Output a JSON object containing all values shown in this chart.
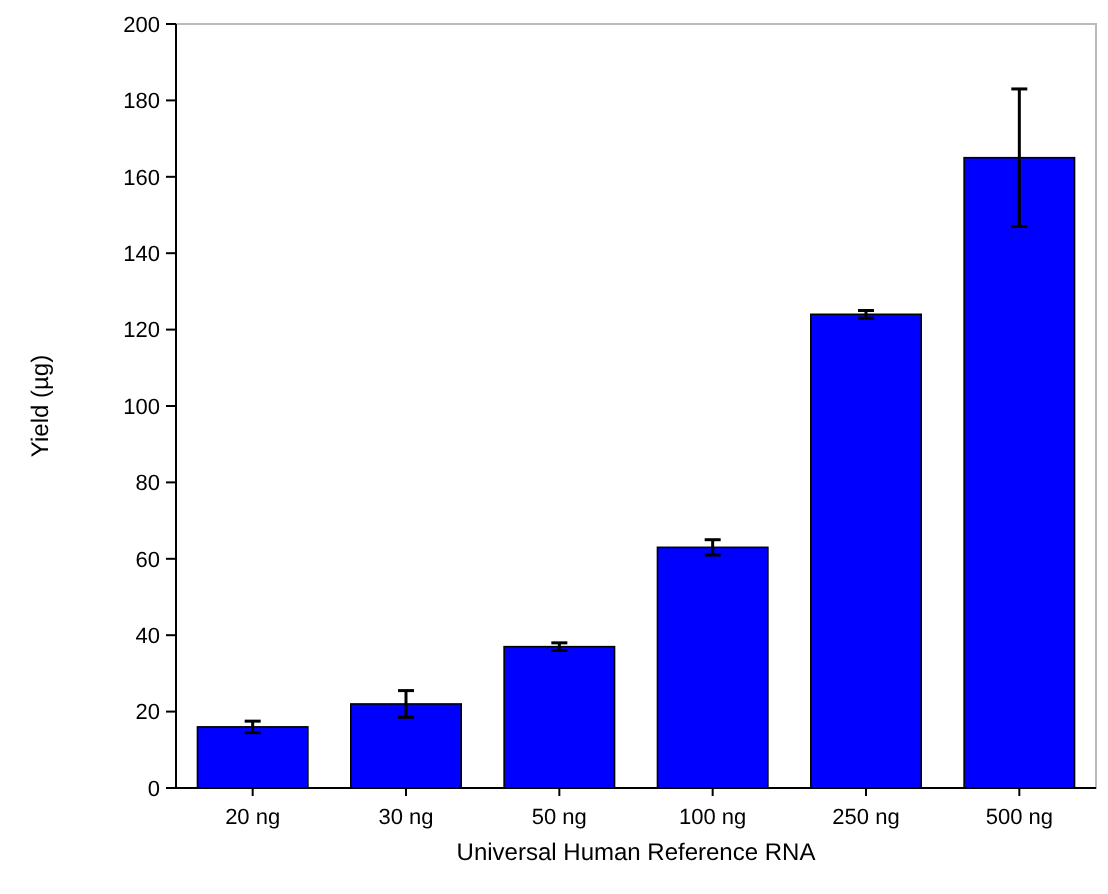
{
  "chart_data": {
    "type": "bar",
    "xlabel": "Universal Human Reference RNA",
    "ylabel": "Yield (µg)",
    "categories": [
      "20 ng",
      "30 ng",
      "50 ng",
      "100 ng",
      "250 ng",
      "500 ng"
    ],
    "values": [
      16,
      22,
      37,
      63,
      124,
      165
    ],
    "errors": [
      1.5,
      3.5,
      1,
      2,
      1,
      18
    ],
    "color": "#0000ff",
    "ylim": [
      0,
      200
    ],
    "yticks": [
      0,
      20,
      40,
      60,
      80,
      100,
      120,
      140,
      160,
      180,
      200
    ],
    "grid": false
  }
}
